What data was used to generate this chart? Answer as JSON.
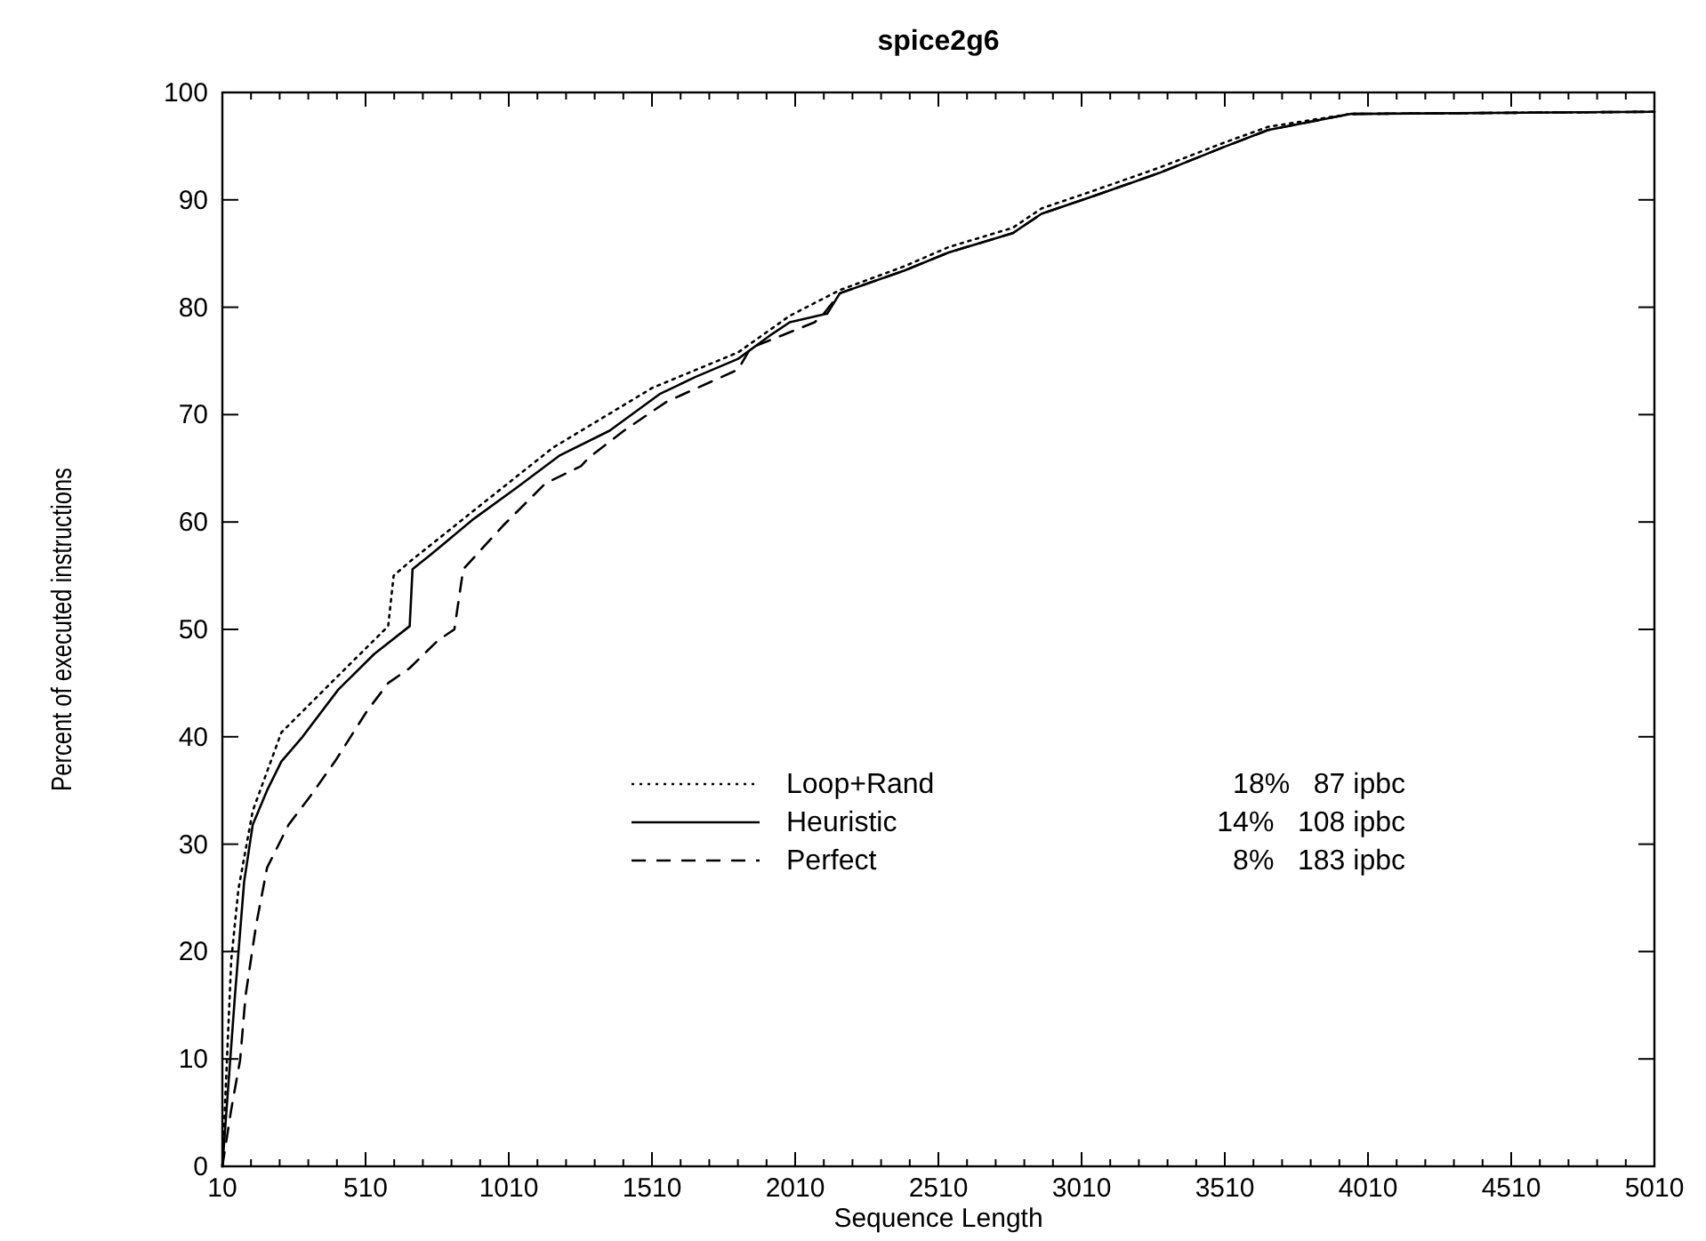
{
  "chart_data": {
    "type": "line",
    "title": "spice2g6",
    "xlabel": "Sequence Length",
    "ylabel": "Percent of executed instructions",
    "xlim": [
      10,
      5010
    ],
    "ylim": [
      0,
      100
    ],
    "xticks": [
      10,
      {
        "value": 110,
        "label": null
      },
      {
        "value": 210,
        "label": null
      },
      {
        "value": 310,
        "label": null
      },
      {
        "value": 410,
        "label": null
      },
      510,
      {
        "value": 610,
        "label": null
      },
      {
        "value": 710,
        "label": null
      },
      {
        "value": 810,
        "label": null
      },
      {
        "value": 910,
        "label": null
      },
      1010,
      {
        "value": 1110,
        "label": null
      },
      {
        "value": 1210,
        "label": null
      },
      {
        "value": 1310,
        "label": null
      },
      {
        "value": 1410,
        "label": null
      },
      1510,
      {
        "value": 1610,
        "label": null
      },
      {
        "value": 1710,
        "label": null
      },
      {
        "value": 1810,
        "label": null
      },
      {
        "value": 1910,
        "label": null
      },
      2010,
      {
        "value": 2110,
        "label": null
      },
      {
        "value": 2210,
        "label": null
      },
      {
        "value": 2310,
        "label": null
      },
      {
        "value": 2410,
        "label": null
      },
      2510,
      {
        "value": 2610,
        "label": null
      },
      {
        "value": 2710,
        "label": null
      },
      {
        "value": 2810,
        "label": null
      },
      {
        "value": 2910,
        "label": null
      },
      3010,
      {
        "value": 3110,
        "label": null
      },
      {
        "value": 3210,
        "label": null
      },
      {
        "value": 3310,
        "label": null
      },
      {
        "value": 3410,
        "label": null
      },
      3510,
      {
        "value": 3610,
        "label": null
      },
      {
        "value": 3710,
        "label": null
      },
      {
        "value": 3810,
        "label": null
      },
      {
        "value": 3910,
        "label": null
      },
      4010,
      {
        "value": 4110,
        "label": null
      },
      {
        "value": 4210,
        "label": null
      },
      {
        "value": 4310,
        "label": null
      },
      {
        "value": 4410,
        "label": null
      },
      4510,
      {
        "value": 4610,
        "label": null
      },
      {
        "value": 4710,
        "label": null
      },
      {
        "value": 4810,
        "label": null
      },
      {
        "value": 4910,
        "label": null
      },
      5010
    ],
    "yticks": [
      0,
      10,
      20,
      30,
      40,
      50,
      60,
      70,
      80,
      90,
      100
    ],
    "grid": false,
    "legend": "bottom left",
    "marker": "none",
    "annotations": [
      "18%   87 ipbc",
      "14%   108 ipbc",
      "8%   183 ipbc"
    ],
    "series": [
      {
        "name": "Loop+Rand",
        "color": "#000000",
        "line_style": "dotted",
        "x": [
          10,
          41,
          66,
          116,
          216,
          415,
          589,
          608,
          664,
          913,
          1163,
          1512,
          1811,
          1991,
          2166,
          2390,
          2546,
          2770,
          2870,
          3057,
          3281,
          3505,
          3661,
          3948,
          5010
        ],
        "values": [
          0,
          19.2,
          25.8,
          33.1,
          40.4,
          45.7,
          50.3,
          55,
          56.3,
          61.6,
          66.9,
          72.5,
          75.8,
          79.2,
          81.6,
          83.8,
          85.6,
          87.4,
          89.2,
          90.9,
          93,
          95.3,
          96.8,
          98,
          98.2
        ]
      },
      {
        "name": "Heuristic",
        "color": "#000000",
        "line_style": "solid",
        "x": [
          10,
          54,
          86,
          116,
          166,
          216,
          290,
          415,
          540,
          664,
          674,
          739,
          888,
          1038,
          1188,
          1362,
          1536,
          1661,
          1811,
          1929,
          1991,
          2122,
          2166,
          2390,
          2546,
          2770,
          2870,
          3057,
          3281,
          3505,
          3661,
          3948,
          5010
        ],
        "values": [
          0,
          15.9,
          26.5,
          31.8,
          35,
          37.7,
          40,
          44.4,
          47.7,
          50.3,
          55.6,
          57,
          60.3,
          63.2,
          66.2,
          68.5,
          71.9,
          73.5,
          75.2,
          77.5,
          78.6,
          79.4,
          81.3,
          83.4,
          85.1,
          86.9,
          88.7,
          90.4,
          92.5,
          94.9,
          96.5,
          98,
          98.2
        ]
      },
      {
        "name": "Perfect",
        "color": "#000000",
        "line_style": "dashed",
        "x": [
          10,
          41,
          72,
          91,
          128,
          166,
          241,
          315,
          403,
          515,
          589,
          664,
          764,
          820,
          851,
          988,
          1138,
          1262,
          1290,
          1412,
          1561,
          1811,
          1854,
          2078,
          2113,
          2166,
          2390,
          2546,
          2770,
          2870,
          3057,
          3281,
          3505,
          3661,
          3948,
          5010
        ],
        "values": [
          0,
          5.3,
          9.9,
          15.9,
          22.5,
          27.8,
          31.8,
          34.4,
          37.7,
          42.4,
          45,
          46.4,
          49,
          50,
          55.6,
          59.6,
          63.6,
          65.2,
          66,
          68.5,
          71.2,
          74.2,
          76.2,
          78.6,
          79.5,
          81.3,
          83.4,
          85.1,
          86.9,
          88.7,
          90.4,
          92.5,
          94.9,
          96.5,
          98,
          98.2
        ]
      }
    ]
  }
}
